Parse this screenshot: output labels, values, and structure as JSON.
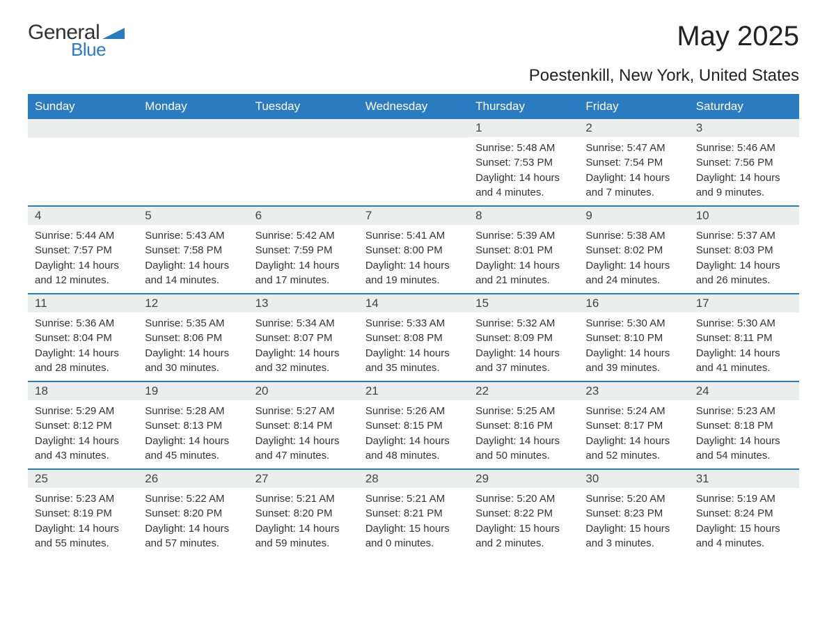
{
  "logo": {
    "text_general": "General",
    "text_blue": "Blue",
    "triangle_color": "#2a7bbf"
  },
  "title": "May 2025",
  "subtitle": "Poestenkill, New York, United States",
  "colors": {
    "header_bg": "#2a7bbf",
    "header_text": "#ffffff",
    "daynum_bg": "#eceded",
    "week_border": "#2a7bbf",
    "body_text": "#333333",
    "page_bg": "#ffffff"
  },
  "weekdays": [
    "Sunday",
    "Monday",
    "Tuesday",
    "Wednesday",
    "Thursday",
    "Friday",
    "Saturday"
  ],
  "weeks": [
    [
      {
        "empty": true
      },
      {
        "empty": true
      },
      {
        "empty": true
      },
      {
        "empty": true
      },
      {
        "day": "1",
        "sunrise": "Sunrise: 5:48 AM",
        "sunset": "Sunset: 7:53 PM",
        "daylight1": "Daylight: 14 hours",
        "daylight2": "and 4 minutes."
      },
      {
        "day": "2",
        "sunrise": "Sunrise: 5:47 AM",
        "sunset": "Sunset: 7:54 PM",
        "daylight1": "Daylight: 14 hours",
        "daylight2": "and 7 minutes."
      },
      {
        "day": "3",
        "sunrise": "Sunrise: 5:46 AM",
        "sunset": "Sunset: 7:56 PM",
        "daylight1": "Daylight: 14 hours",
        "daylight2": "and 9 minutes."
      }
    ],
    [
      {
        "day": "4",
        "sunrise": "Sunrise: 5:44 AM",
        "sunset": "Sunset: 7:57 PM",
        "daylight1": "Daylight: 14 hours",
        "daylight2": "and 12 minutes."
      },
      {
        "day": "5",
        "sunrise": "Sunrise: 5:43 AM",
        "sunset": "Sunset: 7:58 PM",
        "daylight1": "Daylight: 14 hours",
        "daylight2": "and 14 minutes."
      },
      {
        "day": "6",
        "sunrise": "Sunrise: 5:42 AM",
        "sunset": "Sunset: 7:59 PM",
        "daylight1": "Daylight: 14 hours",
        "daylight2": "and 17 minutes."
      },
      {
        "day": "7",
        "sunrise": "Sunrise: 5:41 AM",
        "sunset": "Sunset: 8:00 PM",
        "daylight1": "Daylight: 14 hours",
        "daylight2": "and 19 minutes."
      },
      {
        "day": "8",
        "sunrise": "Sunrise: 5:39 AM",
        "sunset": "Sunset: 8:01 PM",
        "daylight1": "Daylight: 14 hours",
        "daylight2": "and 21 minutes."
      },
      {
        "day": "9",
        "sunrise": "Sunrise: 5:38 AM",
        "sunset": "Sunset: 8:02 PM",
        "daylight1": "Daylight: 14 hours",
        "daylight2": "and 24 minutes."
      },
      {
        "day": "10",
        "sunrise": "Sunrise: 5:37 AM",
        "sunset": "Sunset: 8:03 PM",
        "daylight1": "Daylight: 14 hours",
        "daylight2": "and 26 minutes."
      }
    ],
    [
      {
        "day": "11",
        "sunrise": "Sunrise: 5:36 AM",
        "sunset": "Sunset: 8:04 PM",
        "daylight1": "Daylight: 14 hours",
        "daylight2": "and 28 minutes."
      },
      {
        "day": "12",
        "sunrise": "Sunrise: 5:35 AM",
        "sunset": "Sunset: 8:06 PM",
        "daylight1": "Daylight: 14 hours",
        "daylight2": "and 30 minutes."
      },
      {
        "day": "13",
        "sunrise": "Sunrise: 5:34 AM",
        "sunset": "Sunset: 8:07 PM",
        "daylight1": "Daylight: 14 hours",
        "daylight2": "and 32 minutes."
      },
      {
        "day": "14",
        "sunrise": "Sunrise: 5:33 AM",
        "sunset": "Sunset: 8:08 PM",
        "daylight1": "Daylight: 14 hours",
        "daylight2": "and 35 minutes."
      },
      {
        "day": "15",
        "sunrise": "Sunrise: 5:32 AM",
        "sunset": "Sunset: 8:09 PM",
        "daylight1": "Daylight: 14 hours",
        "daylight2": "and 37 minutes."
      },
      {
        "day": "16",
        "sunrise": "Sunrise: 5:30 AM",
        "sunset": "Sunset: 8:10 PM",
        "daylight1": "Daylight: 14 hours",
        "daylight2": "and 39 minutes."
      },
      {
        "day": "17",
        "sunrise": "Sunrise: 5:30 AM",
        "sunset": "Sunset: 8:11 PM",
        "daylight1": "Daylight: 14 hours",
        "daylight2": "and 41 minutes."
      }
    ],
    [
      {
        "day": "18",
        "sunrise": "Sunrise: 5:29 AM",
        "sunset": "Sunset: 8:12 PM",
        "daylight1": "Daylight: 14 hours",
        "daylight2": "and 43 minutes."
      },
      {
        "day": "19",
        "sunrise": "Sunrise: 5:28 AM",
        "sunset": "Sunset: 8:13 PM",
        "daylight1": "Daylight: 14 hours",
        "daylight2": "and 45 minutes."
      },
      {
        "day": "20",
        "sunrise": "Sunrise: 5:27 AM",
        "sunset": "Sunset: 8:14 PM",
        "daylight1": "Daylight: 14 hours",
        "daylight2": "and 47 minutes."
      },
      {
        "day": "21",
        "sunrise": "Sunrise: 5:26 AM",
        "sunset": "Sunset: 8:15 PM",
        "daylight1": "Daylight: 14 hours",
        "daylight2": "and 48 minutes."
      },
      {
        "day": "22",
        "sunrise": "Sunrise: 5:25 AM",
        "sunset": "Sunset: 8:16 PM",
        "daylight1": "Daylight: 14 hours",
        "daylight2": "and 50 minutes."
      },
      {
        "day": "23",
        "sunrise": "Sunrise: 5:24 AM",
        "sunset": "Sunset: 8:17 PM",
        "daylight1": "Daylight: 14 hours",
        "daylight2": "and 52 minutes."
      },
      {
        "day": "24",
        "sunrise": "Sunrise: 5:23 AM",
        "sunset": "Sunset: 8:18 PM",
        "daylight1": "Daylight: 14 hours",
        "daylight2": "and 54 minutes."
      }
    ],
    [
      {
        "day": "25",
        "sunrise": "Sunrise: 5:23 AM",
        "sunset": "Sunset: 8:19 PM",
        "daylight1": "Daylight: 14 hours",
        "daylight2": "and 55 minutes."
      },
      {
        "day": "26",
        "sunrise": "Sunrise: 5:22 AM",
        "sunset": "Sunset: 8:20 PM",
        "daylight1": "Daylight: 14 hours",
        "daylight2": "and 57 minutes."
      },
      {
        "day": "27",
        "sunrise": "Sunrise: 5:21 AM",
        "sunset": "Sunset: 8:20 PM",
        "daylight1": "Daylight: 14 hours",
        "daylight2": "and 59 minutes."
      },
      {
        "day": "28",
        "sunrise": "Sunrise: 5:21 AM",
        "sunset": "Sunset: 8:21 PM",
        "daylight1": "Daylight: 15 hours",
        "daylight2": "and 0 minutes."
      },
      {
        "day": "29",
        "sunrise": "Sunrise: 5:20 AM",
        "sunset": "Sunset: 8:22 PM",
        "daylight1": "Daylight: 15 hours",
        "daylight2": "and 2 minutes."
      },
      {
        "day": "30",
        "sunrise": "Sunrise: 5:20 AM",
        "sunset": "Sunset: 8:23 PM",
        "daylight1": "Daylight: 15 hours",
        "daylight2": "and 3 minutes."
      },
      {
        "day": "31",
        "sunrise": "Sunrise: 5:19 AM",
        "sunset": "Sunset: 8:24 PM",
        "daylight1": "Daylight: 15 hours",
        "daylight2": "and 4 minutes."
      }
    ]
  ]
}
